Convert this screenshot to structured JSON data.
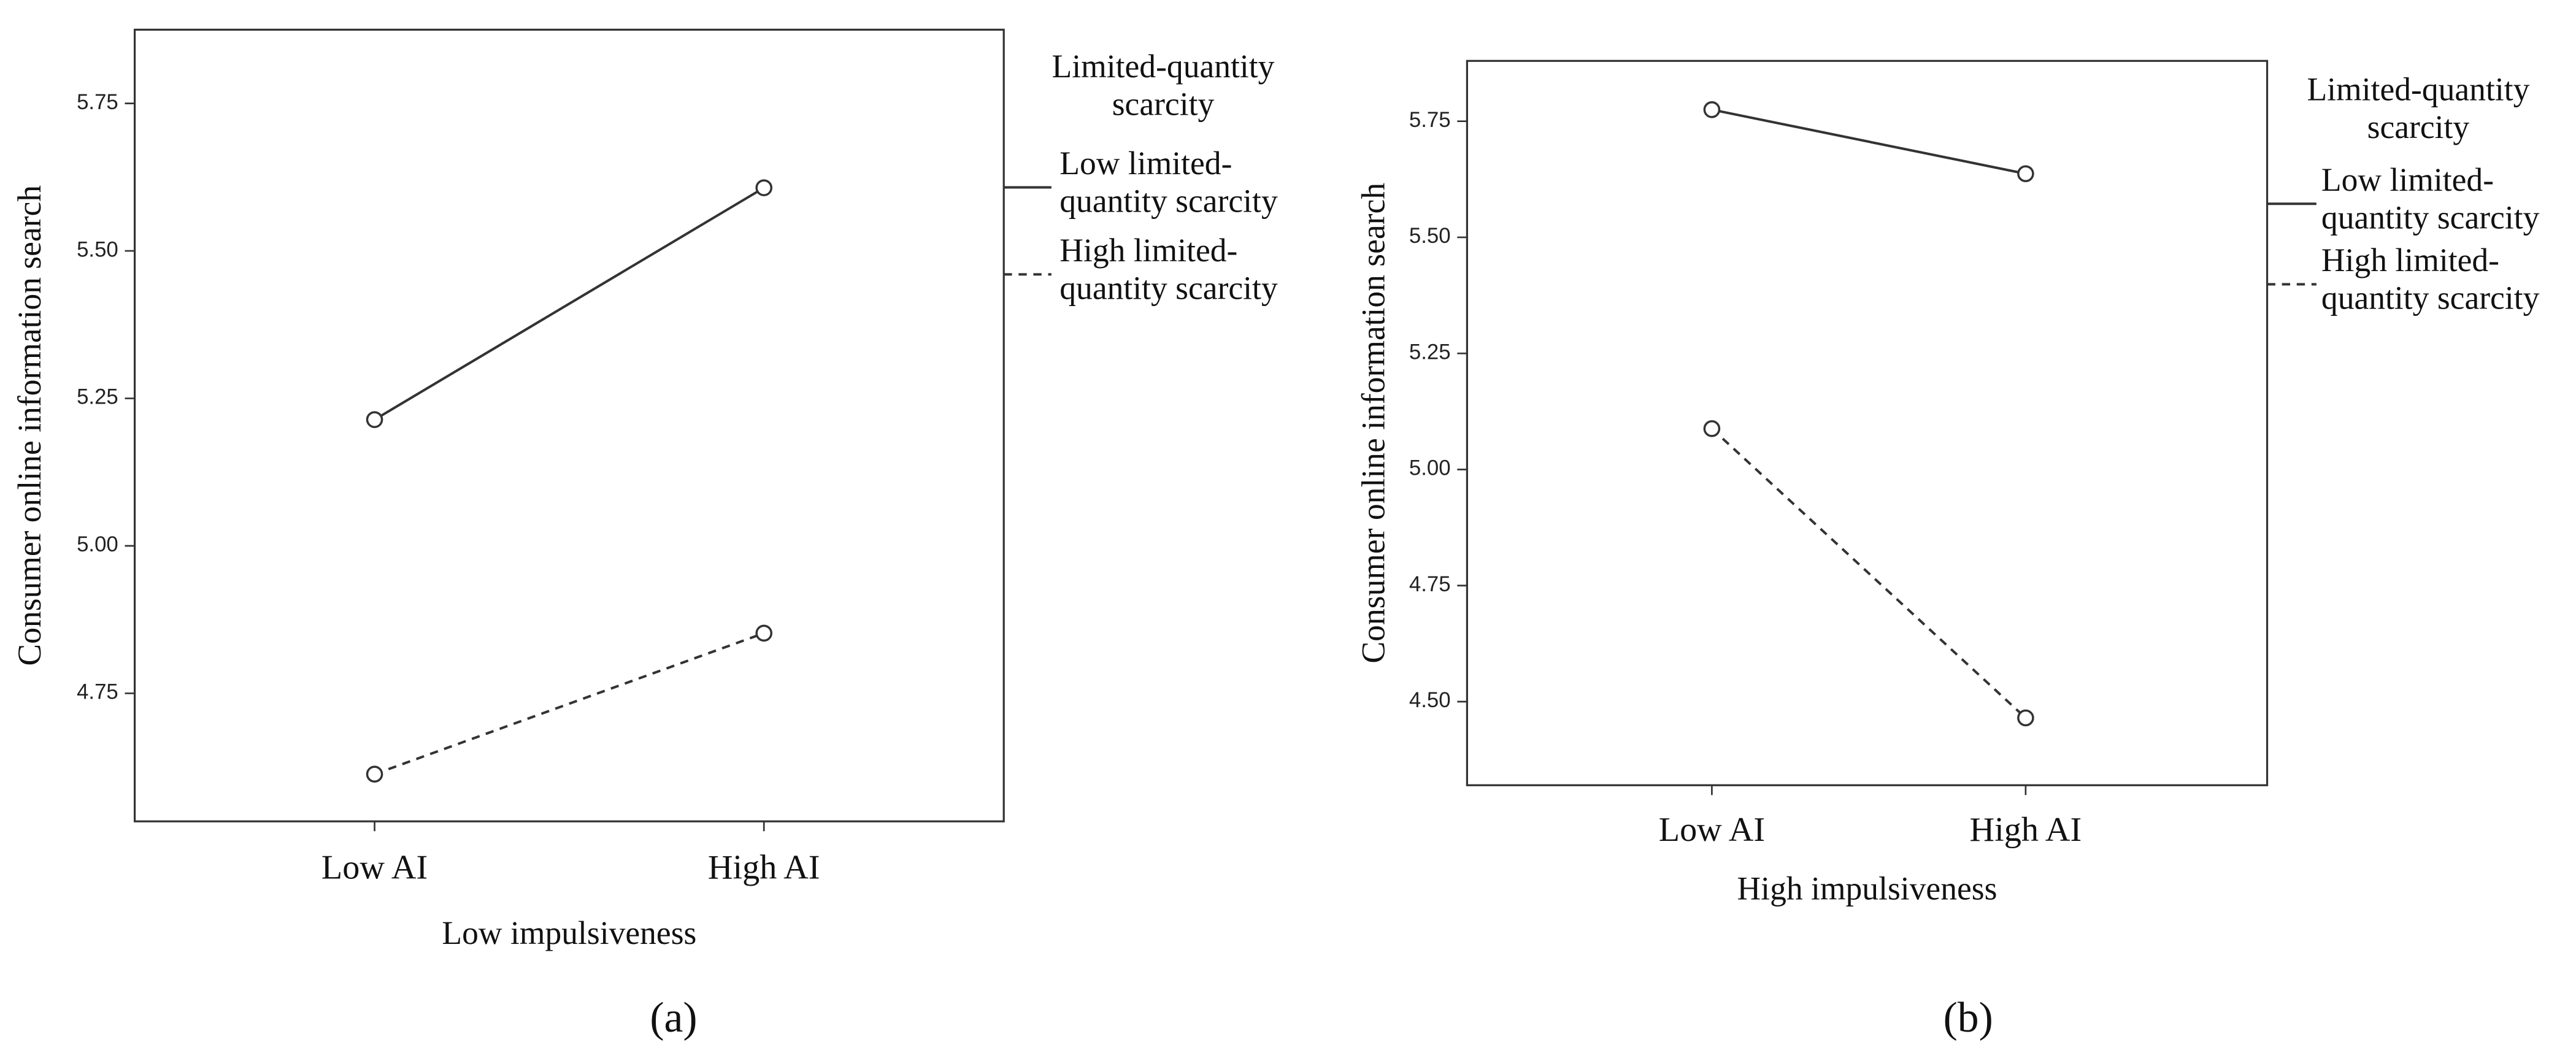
{
  "chart_data": [
    {
      "type": "line",
      "caption": "(a)",
      "y_label": "Consumer online information search",
      "x_label": "Low impulsiveness",
      "categories": [
        "Low AI",
        "High AI"
      ],
      "legend_title": "Limited-quantity scarcity",
      "series": [
        {
          "name": "Low limited-quantity scarcity",
          "color": "#333333",
          "line_style": "solid",
          "values": [
            5.214,
            5.607
          ]
        },
        {
          "name": "High limited-quantity scarcity",
          "color": "#333333",
          "line_style": "dashed",
          "values": [
            4.613,
            4.852
          ]
        }
      ],
      "ylim": [
        4.533,
        5.875
      ],
      "yticks": [
        4.75,
        {
          "value": 5,
          "label": "5.00"
        },
        5.25,
        {
          "value": 5.5,
          "label": "5.50"
        },
        5.75
      ]
    },
    {
      "type": "line",
      "caption": "(b)",
      "y_label": "Consumer online information search",
      "x_label": "High impulsiveness",
      "categories": [
        "Low AI",
        "High AI"
      ],
      "legend_title": "Limited-quantity scarcity",
      "series": [
        {
          "name": "Low limited-quantity scarcity",
          "color": "#333333",
          "line_style": "solid",
          "values": [
            5.775,
            5.637
          ]
        },
        {
          "name": "High limited-quantity scarcity",
          "color": "#333333",
          "line_style": "dashed",
          "values": [
            5.088,
            4.465
          ]
        }
      ],
      "ylim": [
        4.32,
        5.88
      ],
      "yticks": [
        {
          "value": 4.5,
          "label": "4.50"
        },
        4.75,
        {
          "value": 5,
          "label": "5.00"
        },
        5.25,
        {
          "value": 5.5,
          "label": "5.50"
        },
        5.75
      ]
    }
  ]
}
